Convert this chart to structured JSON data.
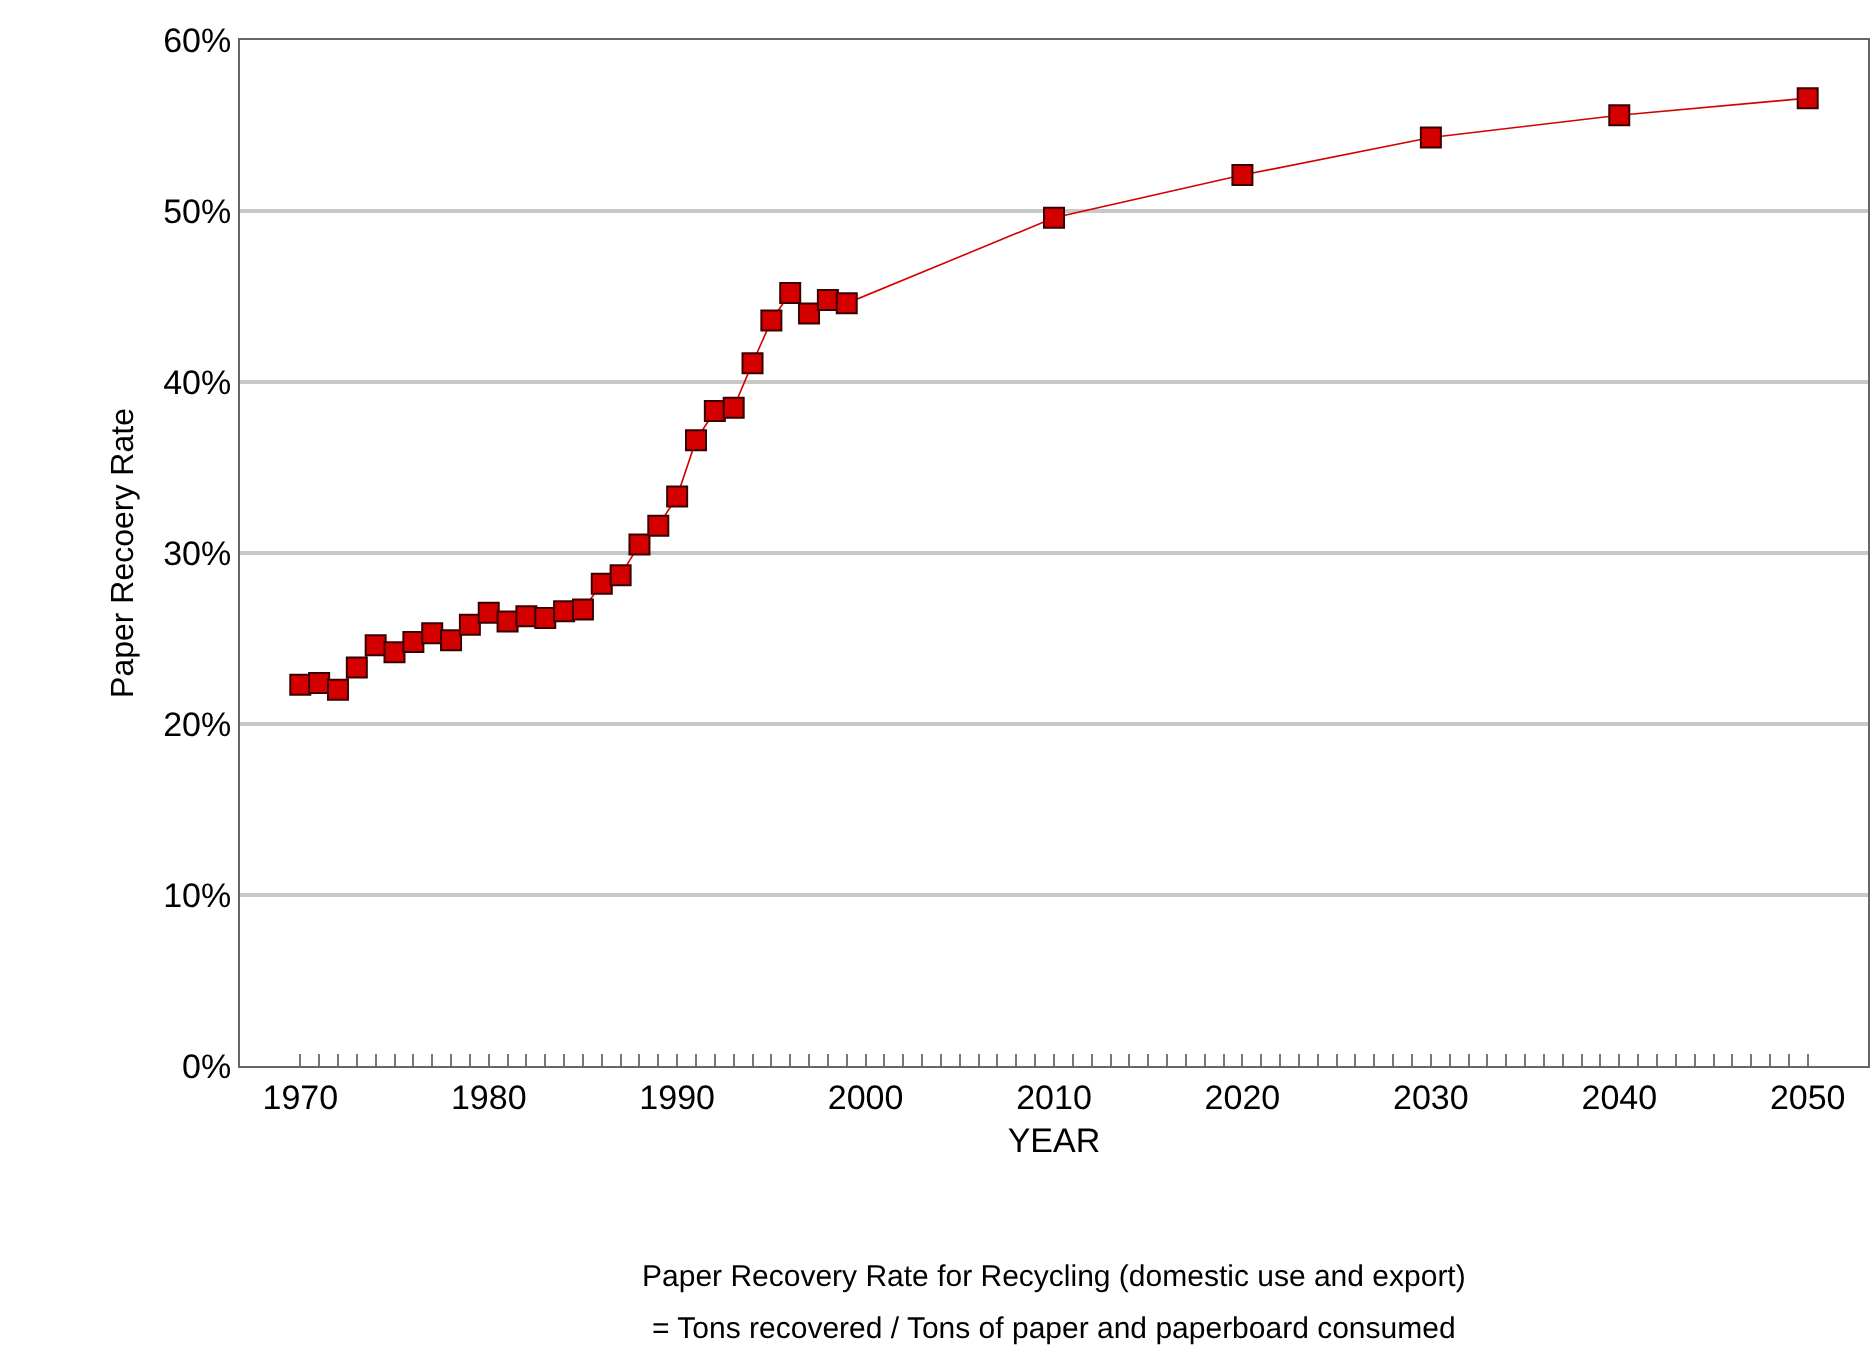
{
  "chart_data": {
    "type": "line",
    "xlabel": "YEAR",
    "ylabel": "Paper Recoery Rate",
    "annotations": [
      "Paper Recovery Rate for Recycling (domestic use and export)",
      "= Tons recovered / Tons of paper and paperboard consumed"
    ],
    "x": [
      1970,
      1971,
      1972,
      1973,
      1974,
      1975,
      1976,
      1977,
      1978,
      1979,
      1980,
      1981,
      1982,
      1983,
      1984,
      1985,
      1986,
      1987,
      1988,
      1989,
      1990,
      1991,
      1992,
      1993,
      1994,
      1995,
      1996,
      1997,
      1998,
      1999,
      2010,
      2020,
      2030,
      2040,
      2050
    ],
    "series": [
      {
        "color": "#d40000",
        "values": [
          22.3,
          22.4,
          22.0,
          23.3,
          24.6,
          24.2,
          24.8,
          25.3,
          24.9,
          25.8,
          26.5,
          26.0,
          26.3,
          26.2,
          26.6,
          26.7,
          28.2,
          28.7,
          30.5,
          31.6,
          33.3,
          36.6,
          38.3,
          38.5,
          41.1,
          43.6,
          45.2,
          44.0,
          44.8,
          44.6,
          49.6,
          52.1,
          54.3,
          55.6,
          56.6
        ]
      }
    ],
    "marker": "square",
    "line_style": "solid",
    "grid": "y",
    "xlim": [
      1966.8,
      2053.2
    ],
    "xticks": [
      1970,
      {
        "value": 1971,
        "label": null
      },
      {
        "value": 1972,
        "label": null
      },
      {
        "value": 1973,
        "label": null
      },
      {
        "value": 1974,
        "label": null
      },
      {
        "value": 1975,
        "label": null
      },
      {
        "value": 1976,
        "label": null
      },
      {
        "value": 1977,
        "label": null
      },
      {
        "value": 1978,
        "label": null
      },
      {
        "value": 1979,
        "label": null
      },
      1980,
      {
        "value": 1981,
        "label": null
      },
      {
        "value": 1982,
        "label": null
      },
      {
        "value": 1983,
        "label": null
      },
      {
        "value": 1984,
        "label": null
      },
      {
        "value": 1985,
        "label": null
      },
      {
        "value": 1986,
        "label": null
      },
      {
        "value": 1987,
        "label": null
      },
      {
        "value": 1988,
        "label": null
      },
      {
        "value": 1989,
        "label": null
      },
      1990,
      {
        "value": 1991,
        "label": null
      },
      {
        "value": 1992,
        "label": null
      },
      {
        "value": 1993,
        "label": null
      },
      {
        "value": 1994,
        "label": null
      },
      {
        "value": 1995,
        "label": null
      },
      {
        "value": 1996,
        "label": null
      },
      {
        "value": 1997,
        "label": null
      },
      {
        "value": 1998,
        "label": null
      },
      {
        "value": 1999,
        "label": null
      },
      2000,
      {
        "value": 2001,
        "label": null
      },
      {
        "value": 2002,
        "label": null
      },
      {
        "value": 2003,
        "label": null
      },
      {
        "value": 2004,
        "label": null
      },
      {
        "value": 2005,
        "label": null
      },
      {
        "value": 2006,
        "label": null
      },
      {
        "value": 2007,
        "label": null
      },
      {
        "value": 2008,
        "label": null
      },
      {
        "value": 2009,
        "label": null
      },
      2010,
      {
        "value": 2011,
        "label": null
      },
      {
        "value": 2012,
        "label": null
      },
      {
        "value": 2013,
        "label": null
      },
      {
        "value": 2014,
        "label": null
      },
      {
        "value": 2015,
        "label": null
      },
      {
        "value": 2016,
        "label": null
      },
      {
        "value": 2017,
        "label": null
      },
      {
        "value": 2018,
        "label": null
      },
      {
        "value": 2019,
        "label": null
      },
      2020,
      {
        "value": 2021,
        "label": null
      },
      {
        "value": 2022,
        "label": null
      },
      {
        "value": 2023,
        "label": null
      },
      {
        "value": 2024,
        "label": null
      },
      {
        "value": 2025,
        "label": null
      },
      {
        "value": 2026,
        "label": null
      },
      {
        "value": 2027,
        "label": null
      },
      {
        "value": 2028,
        "label": null
      },
      {
        "value": 2029,
        "label": null
      },
      2030,
      {
        "value": 2031,
        "label": null
      },
      {
        "value": 2032,
        "label": null
      },
      {
        "value": 2033,
        "label": null
      },
      {
        "value": 2034,
        "label": null
      },
      {
        "value": 2035,
        "label": null
      },
      {
        "value": 2036,
        "label": null
      },
      {
        "value": 2037,
        "label": null
      },
      {
        "value": 2038,
        "label": null
      },
      {
        "value": 2039,
        "label": null
      },
      2040,
      {
        "value": 2041,
        "label": null
      },
      {
        "value": 2042,
        "label": null
      },
      {
        "value": 2043,
        "label": null
      },
      {
        "value": 2044,
        "label": null
      },
      {
        "value": 2045,
        "label": null
      },
      {
        "value": 2046,
        "label": null
      },
      {
        "value": 2047,
        "label": null
      },
      {
        "value": 2048,
        "label": null
      },
      {
        "value": 2049,
        "label": null
      },
      2050
    ],
    "ylim": [
      0,
      60
    ],
    "yticks": [
      {
        "value": 0,
        "label": "0%"
      },
      {
        "value": 10,
        "label": "10%"
      },
      {
        "value": 20,
        "label": "20%"
      },
      {
        "value": 30,
        "label": "30%"
      },
      {
        "value": 40,
        "label": "40%"
      },
      {
        "value": 50,
        "label": "50%"
      },
      {
        "value": 60,
        "label": "60%"
      }
    ]
  }
}
